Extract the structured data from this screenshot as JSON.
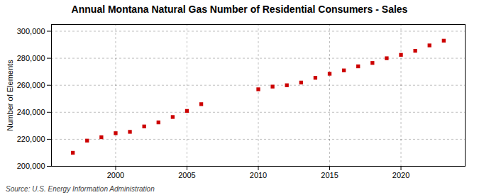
{
  "chart_data": {
    "type": "scatter",
    "title": "Annual Montana Natural Gas Number of Residential Consumers - Sales",
    "ylabel": "Number of Elements",
    "source": "Source: U.S. Energy Information Administration",
    "x": [
      1997,
      1998,
      1999,
      2000,
      2001,
      2002,
      2003,
      2004,
      2005,
      2006,
      2010,
      2011,
      2012,
      2013,
      2014,
      2015,
      2016,
      2017,
      2018,
      2019,
      2020,
      2021,
      2022,
      2023
    ],
    "values": [
      210000,
      219000,
      221500,
      224500,
      225500,
      229500,
      232500,
      236500,
      241000,
      246000,
      257000,
      259000,
      260000,
      262000,
      265500,
      268500,
      271000,
      274000,
      276500,
      280000,
      282500,
      285500,
      289500,
      293000
    ],
    "color": "#cc0000",
    "marker": "square",
    "xlim": [
      1995.5,
      2024.5
    ],
    "xticks": [
      2000,
      2005,
      2010,
      2015,
      2020
    ],
    "ylim": [
      200000,
      305000
    ],
    "yticks": [
      {
        "value": 200000,
        "label": "200,000"
      },
      {
        "value": 220000,
        "label": "220,000"
      },
      {
        "value": 240000,
        "label": "240,000"
      },
      {
        "value": 260000,
        "label": "260,000"
      },
      {
        "value": 280000,
        "label": "280,000"
      },
      {
        "value": 300000,
        "label": "300,000"
      }
    ],
    "grid": true
  }
}
